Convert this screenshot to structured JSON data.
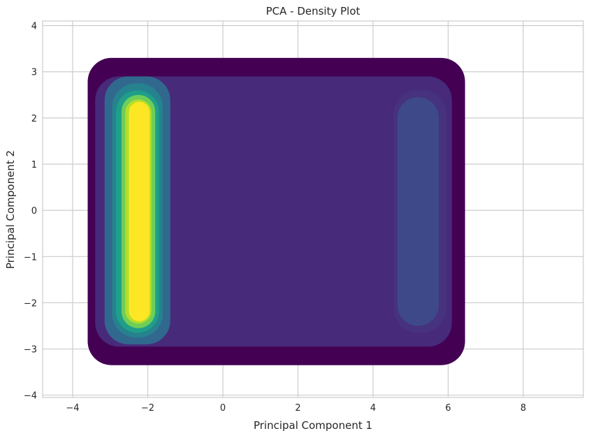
{
  "chart_data": {
    "type": "density_contour",
    "title": "PCA - Density Plot",
    "xlabel": "Principal Component 1",
    "ylabel": "Principal Component 2",
    "xlim": [
      -4.8,
      9.6
    ],
    "ylim": [
      -4.05,
      4.1
    ],
    "xticks": [
      -4,
      -2,
      0,
      2,
      4,
      6,
      8
    ],
    "yticks": [
      -4,
      -3,
      -2,
      -1,
      0,
      1,
      2,
      3,
      4
    ],
    "xtick_labels": [
      "−4",
      "−2",
      "0",
      "2",
      "4",
      "6",
      "8"
    ],
    "ytick_labels": [
      "−4",
      "−3",
      "−2",
      "−1",
      "0",
      "1",
      "2",
      "3",
      "4"
    ],
    "grid": true,
    "colormap": "viridis",
    "colors": [
      "#440154",
      "#46327e",
      "#365c8d",
      "#277f8e",
      "#1fa187",
      "#4ac16d",
      "#a0da39",
      "#fde725"
    ],
    "levels": [
      {
        "color": "#440154",
        "xmin": -3.6,
        "xmax": 6.45,
        "ymin": -3.35,
        "ymax": 3.3
      },
      {
        "color": "#472a7a",
        "xmin": -3.4,
        "xmax": 6.1,
        "ymin": -2.95,
        "ymax": 2.9
      },
      {
        "color": "#46327e",
        "xmin": 4.55,
        "xmax": 5.95,
        "ymin": -2.65,
        "ymax": 2.6
      },
      {
        "color": "#3e4989",
        "xmin": 4.65,
        "xmax": 5.75,
        "ymin": -2.5,
        "ymax": 2.45
      },
      {
        "color": "#31688e",
        "xmin": -3.15,
        "xmax": -1.4,
        "ymin": -2.9,
        "ymax": 2.9
      },
      {
        "color": "#26828e",
        "xmin": -2.95,
        "xmax": -1.6,
        "ymin": -2.75,
        "ymax": 2.75
      },
      {
        "color": "#1f9e89",
        "xmin": -2.85,
        "xmax": -1.7,
        "ymin": -2.65,
        "ymax": 2.6
      },
      {
        "color": "#6ece58",
        "xmin": -2.7,
        "xmax": -1.8,
        "ymin": -2.55,
        "ymax": 2.5
      },
      {
        "color": "#b5de2b",
        "xmin": -2.6,
        "xmax": -1.9,
        "ymin": -2.45,
        "ymax": 2.4
      },
      {
        "color": "#fde725",
        "xmin": -2.5,
        "xmax": -1.95,
        "ymin": -2.4,
        "ymax": 2.35
      }
    ]
  }
}
